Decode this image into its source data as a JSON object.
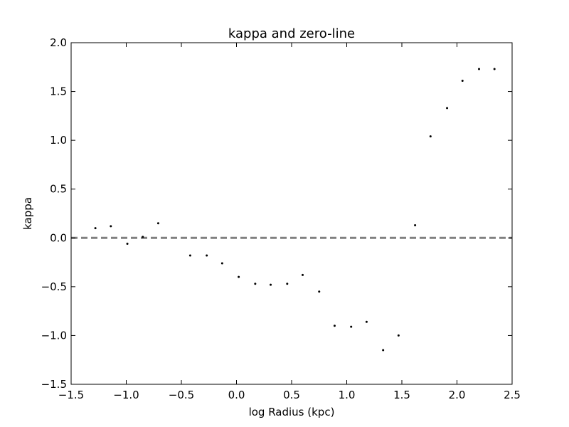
{
  "chart_data": {
    "type": "scatter",
    "title": "kappa and zero-line",
    "xlabel": "log Radius (kpc)",
    "ylabel": "kappa",
    "xlim": [
      -1.5,
      2.5
    ],
    "ylim": [
      -1.5,
      2.0
    ],
    "xticks": [
      -1.5,
      -1.0,
      -0.5,
      0.0,
      0.5,
      1.0,
      1.5,
      2.0,
      2.5
    ],
    "xtick_labels": [
      "−1.5",
      "−1.0",
      "−0.5",
      "0.0",
      "0.5",
      "1.0",
      "1.5",
      "2.0",
      "2.5"
    ],
    "yticks": [
      -1.5,
      -1.0,
      -0.5,
      0.0,
      0.5,
      1.0,
      1.5,
      2.0
    ],
    "ytick_labels": [
      "−1.5",
      "−1.0",
      "−0.5",
      "0.0",
      "0.5",
      "1.0",
      "1.5",
      "2.0"
    ],
    "grid": false,
    "series": [
      {
        "color": "#000000",
        "marker": "point",
        "x": [
          -1.28,
          -1.14,
          -0.99,
          -0.85,
          -0.71,
          -0.42,
          -0.27,
          -0.13,
          0.02,
          0.17,
          0.31,
          0.46,
          0.6,
          0.75,
          0.89,
          1.04,
          1.18,
          1.33,
          1.47,
          1.62,
          1.76,
          1.91,
          2.05,
          2.2,
          2.34
        ],
        "y": [
          0.1,
          0.12,
          -0.06,
          0.01,
          0.15,
          -0.18,
          -0.18,
          -0.26,
          -0.4,
          -0.47,
          -0.48,
          -0.47,
          -0.38,
          -0.55,
          -0.9,
          -0.91,
          -0.86,
          -1.15,
          -1.0,
          0.13,
          1.04,
          1.33,
          1.61,
          1.73,
          1.73
        ]
      }
    ],
    "reference_lines": [
      {
        "orientation": "horizontal",
        "y": 0.0,
        "style": "dashed",
        "color": "#808080"
      }
    ]
  }
}
